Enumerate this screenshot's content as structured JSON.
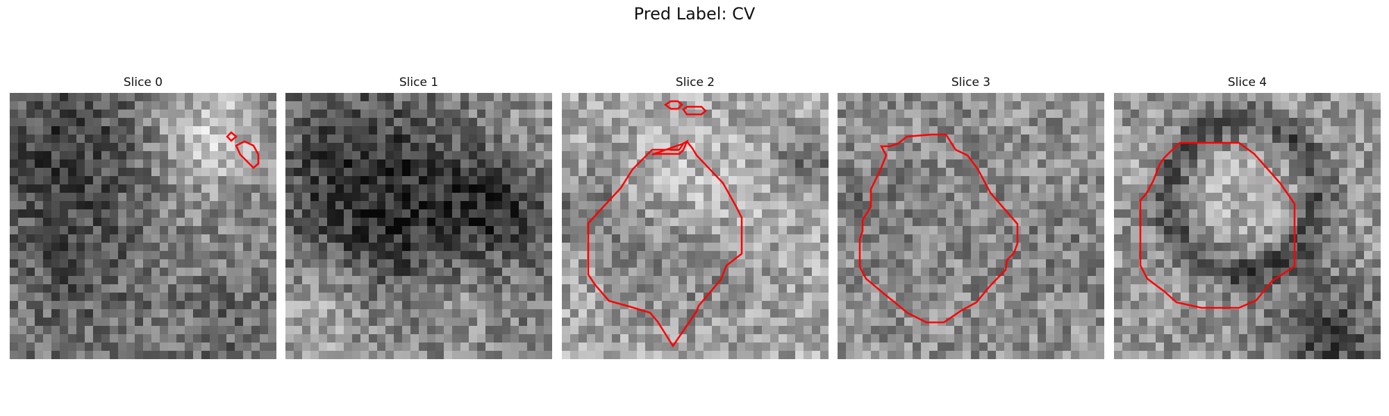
{
  "figure": {
    "title": "Pred Label: CV"
  },
  "contour_color": "#ff0000",
  "panels": [
    {
      "title": "Slice 0",
      "seed": 11,
      "base": 0.48,
      "blobs": [
        [
          6,
          6,
          7,
          -0.22
        ],
        [
          8,
          20,
          6,
          -0.14
        ],
        [
          24,
          4,
          5,
          0.3
        ],
        [
          21,
          18,
          7,
          0.06
        ],
        [
          25,
          26,
          5,
          -0.1
        ]
      ]
    },
    {
      "title": "Slice 1",
      "seed": 23,
      "base": 0.5,
      "blobs": [
        [
          8,
          10,
          8,
          -0.26
        ],
        [
          18,
          18,
          8,
          -0.22
        ],
        [
          25,
          12,
          4,
          -0.22
        ],
        [
          4,
          26,
          5,
          0.2
        ],
        [
          20,
          25,
          5,
          0.22
        ],
        [
          28,
          4,
          5,
          0.1
        ]
      ]
    },
    {
      "title": "Slice 2",
      "seed": 37,
      "base": 0.66,
      "blobs": [
        [
          15,
          11,
          5,
          0.12
        ],
        [
          12,
          17,
          7,
          -0.1
        ],
        [
          24,
          12,
          4,
          0.06
        ],
        [
          2,
          14,
          3,
          -0.22
        ],
        [
          29,
          8,
          3,
          -0.24
        ],
        [
          16,
          22,
          6,
          -0.06
        ]
      ]
    },
    {
      "title": "Slice 3",
      "seed": 49,
      "base": 0.57,
      "blobs": [
        [
          14,
          15,
          10,
          -0.04
        ],
        [
          2,
          13,
          3,
          -0.12
        ],
        [
          28,
          18,
          4,
          -0.06
        ]
      ]
    },
    {
      "title": "Slice 4",
      "seed": 61,
      "base": 0.58,
      "ring": [
        15,
        12,
        9,
        -0.3
      ],
      "blobs": [
        [
          15,
          11,
          5,
          0.12
        ],
        [
          25,
          29,
          5,
          -0.3
        ],
        [
          2,
          8,
          3,
          0.06
        ]
      ]
    }
  ]
}
